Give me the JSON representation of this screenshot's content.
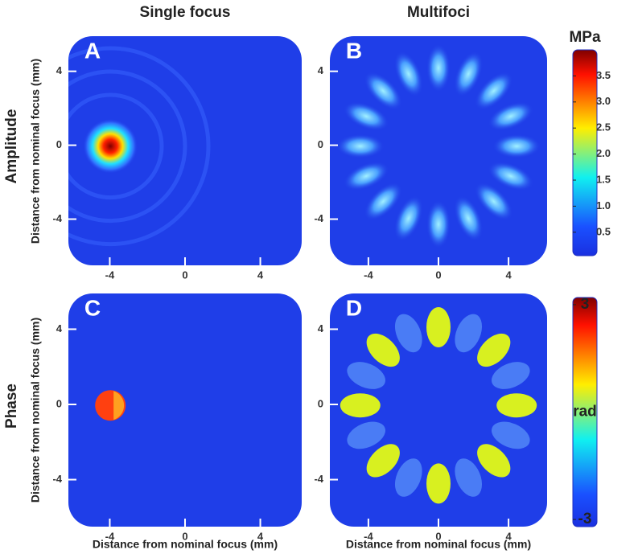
{
  "figure": {
    "columns": [
      "Single focus",
      "Multifoci"
    ],
    "rows": [
      "Amplitude",
      "Phase"
    ],
    "panels": [
      {
        "label": "A"
      },
      {
        "label": "B"
      },
      {
        "label": "C"
      },
      {
        "label": "D"
      }
    ],
    "xlabel": "Distance from nominal focus (mm)",
    "ylabel": "Distance from nominal focus (mm)",
    "xlim": [
      -6.2,
      6.2
    ],
    "xticks": [
      -4,
      0,
      4
    ],
    "ylim": [
      -6.5,
      5.9
    ],
    "yticks": [
      -4,
      0,
      4
    ],
    "colorbars": [
      {
        "unit": "MPa",
        "lim": [
          0.05,
          4.0
        ],
        "ticks": [
          0.5,
          {
            "value": 1,
            "label": "1.0"
          },
          1.5,
          {
            "value": 2,
            "label": "2.0"
          },
          2.5,
          {
            "value": 3,
            "label": "3.0"
          },
          3.5
        ]
      },
      {
        "unit": "rad",
        "lim": [
          -3.2,
          3.2
        ],
        "ticks": [
          -3,
          3
        ]
      }
    ]
  }
}
